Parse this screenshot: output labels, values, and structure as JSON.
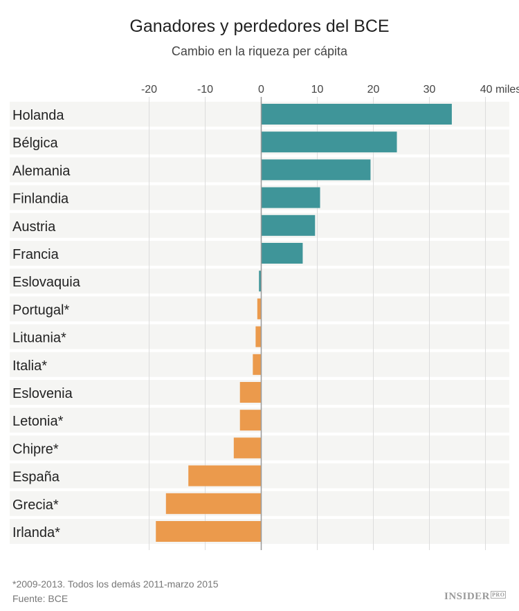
{
  "chart_data": {
    "type": "bar",
    "orientation": "horizontal",
    "title": "Ganadores y perdedores del BCE",
    "subtitle": "Cambio en la riqueza per cápita",
    "xlim": [
      -20,
      40
    ],
    "xticks": [
      "-20",
      "-10",
      "0",
      "10",
      "20",
      "30",
      "40 miles"
    ],
    "xtick_values": [
      -20,
      -10,
      0,
      10,
      20,
      30,
      40
    ],
    "grid": true,
    "categories": [
      "Holanda",
      "Bélgica",
      "Alemania",
      "Finlandia",
      "Austria",
      "Francia",
      "Eslovaquia",
      "Portugal*",
      "Lituania*",
      "Italia*",
      "Eslovenia",
      "Letonia*",
      "Chipre*",
      "España",
      "Grecia*",
      "Irlanda*"
    ],
    "values": [
      34.0,
      24.2,
      19.5,
      10.5,
      9.6,
      7.4,
      -0.4,
      -0.7,
      -1.0,
      -1.5,
      -3.8,
      -3.8,
      -4.9,
      -13.0,
      -17.0,
      -18.8
    ],
    "colors": {
      "gainer": "#3f9599",
      "loser": "#eb9a4c"
    },
    "bar_color_groups": [
      "gainer",
      "gainer",
      "gainer",
      "gainer",
      "gainer",
      "gainer",
      "gainer",
      "loser",
      "loser",
      "loser",
      "loser",
      "loser",
      "loser",
      "loser",
      "loser",
      "loser"
    ]
  },
  "footer": {
    "note": "*2009-2013. Todos los demás 2011-marzo 2015",
    "source": "Fuente: BCE",
    "logo": "INSIDER PRO"
  }
}
